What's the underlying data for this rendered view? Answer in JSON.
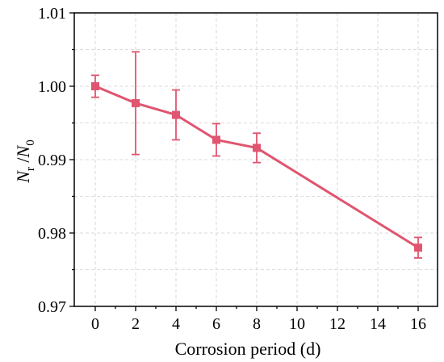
{
  "chart_data": {
    "type": "line",
    "x_tick_labels": [
      "0",
      "2",
      "4",
      "6",
      "8",
      "10",
      "12",
      "14",
      "16"
    ],
    "y_tick_labels": [
      "0.97",
      "0.98",
      "0.99",
      "1.00",
      "1.01"
    ],
    "xlabel": "Corrosion period (d)",
    "ylabel": {
      "base1": "N",
      "sub1": "r",
      "sep": " /",
      "base2": "N",
      "sub2": "0"
    },
    "ylim": [
      0.97,
      1.01
    ],
    "grid": true,
    "color": "#e0556f",
    "series": [
      {
        "x": [
          0,
          2,
          4,
          6,
          8,
          16
        ],
        "y": [
          1.0,
          0.9977,
          0.9961,
          0.9927,
          0.9916,
          0.978
        ],
        "err": [
          0.0015,
          0.007,
          0.0034,
          0.0022,
          0.002,
          0.0014
        ]
      }
    ]
  }
}
